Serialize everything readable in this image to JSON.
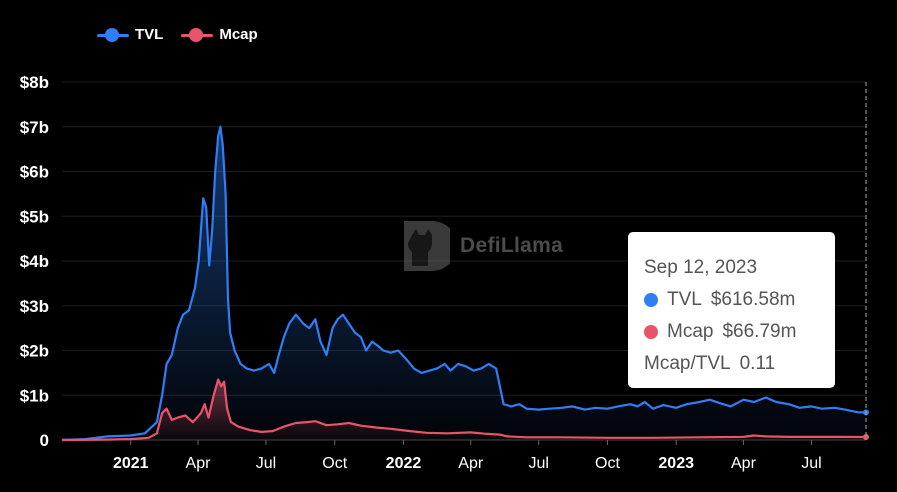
{
  "legend": {
    "tvl_label": "TVL",
    "mcap_label": "Mcap"
  },
  "watermark": "DefiLlama",
  "tooltip": {
    "date": "Sep 12, 2023",
    "tvl_label": "TVL",
    "tvl_value": "$616.58m",
    "mcap_label": "Mcap",
    "mcap_value": "$66.79m",
    "ratio_label": "Mcap/TVL",
    "ratio_value": "0.11"
  },
  "colors": {
    "tvl": "#2f7ef5",
    "mcap": "#e8556b",
    "background": "#000000",
    "grid": "#1e1e1e"
  },
  "chart_data": {
    "type": "area",
    "title": "",
    "xlabel": "",
    "ylabel": "",
    "ylim": [
      0,
      8
    ],
    "y_unit": "billions USD",
    "grid": true,
    "legend_position": "top-left",
    "y_ticks": [
      {
        "v": 0,
        "label": "0"
      },
      {
        "v": 1,
        "label": "$1b"
      },
      {
        "v": 2,
        "label": "$2b"
      },
      {
        "v": 3,
        "label": "$3b"
      },
      {
        "v": 4,
        "label": "$4b"
      },
      {
        "v": 5,
        "label": "$5b"
      },
      {
        "v": 6,
        "label": "$6b"
      },
      {
        "v": 7,
        "label": "$7b"
      },
      {
        "v": 8,
        "label": "$8b"
      }
    ],
    "x_ticks": [
      {
        "date": "2021-01-01",
        "label": "2021",
        "bold": true
      },
      {
        "date": "2021-04-01",
        "label": "Apr",
        "bold": false
      },
      {
        "date": "2021-07-01",
        "label": "Jul",
        "bold": false
      },
      {
        "date": "2021-10-01",
        "label": "Oct",
        "bold": false
      },
      {
        "date": "2022-01-01",
        "label": "2022",
        "bold": true
      },
      {
        "date": "2022-04-01",
        "label": "Apr",
        "bold": false
      },
      {
        "date": "2022-07-01",
        "label": "Jul",
        "bold": false
      },
      {
        "date": "2022-10-01",
        "label": "Oct",
        "bold": false
      },
      {
        "date": "2023-01-01",
        "label": "2023",
        "bold": true
      },
      {
        "date": "2023-04-01",
        "label": "Apr",
        "bold": false
      },
      {
        "date": "2023-07-01",
        "label": "Jul",
        "bold": false
      }
    ],
    "x_range": [
      "2020-10-01",
      "2023-09-12"
    ],
    "highlight_date": "2023-09-12",
    "series": [
      {
        "name": "TVL",
        "values": [
          [
            "2020-10-01",
            0.0
          ],
          [
            "2020-11-01",
            0.02
          ],
          [
            "2020-12-01",
            0.08
          ],
          [
            "2021-01-01",
            0.1
          ],
          [
            "2021-01-20",
            0.15
          ],
          [
            "2021-02-05",
            0.4
          ],
          [
            "2021-02-12",
            1.0
          ],
          [
            "2021-02-18",
            1.7
          ],
          [
            "2021-02-25",
            1.9
          ],
          [
            "2021-03-05",
            2.5
          ],
          [
            "2021-03-12",
            2.8
          ],
          [
            "2021-03-20",
            2.9
          ],
          [
            "2021-03-28",
            3.4
          ],
          [
            "2021-04-02",
            4.0
          ],
          [
            "2021-04-08",
            5.4
          ],
          [
            "2021-04-12",
            5.2
          ],
          [
            "2021-04-16",
            3.9
          ],
          [
            "2021-04-20",
            4.7
          ],
          [
            "2021-04-24",
            6.0
          ],
          [
            "2021-04-28",
            6.8
          ],
          [
            "2021-05-01",
            7.0
          ],
          [
            "2021-05-04",
            6.6
          ],
          [
            "2021-05-08",
            5.5
          ],
          [
            "2021-05-11",
            3.2
          ],
          [
            "2021-05-14",
            2.4
          ],
          [
            "2021-05-20",
            2.0
          ],
          [
            "2021-05-28",
            1.7
          ],
          [
            "2021-06-05",
            1.6
          ],
          [
            "2021-06-15",
            1.55
          ],
          [
            "2021-06-25",
            1.6
          ],
          [
            "2021-07-05",
            1.7
          ],
          [
            "2021-07-12",
            1.5
          ],
          [
            "2021-07-18",
            1.9
          ],
          [
            "2021-07-25",
            2.3
          ],
          [
            "2021-08-01",
            2.6
          ],
          [
            "2021-08-10",
            2.8
          ],
          [
            "2021-08-20",
            2.6
          ],
          [
            "2021-08-28",
            2.5
          ],
          [
            "2021-09-05",
            2.7
          ],
          [
            "2021-09-12",
            2.2
          ],
          [
            "2021-09-20",
            1.9
          ],
          [
            "2021-09-28",
            2.5
          ],
          [
            "2021-10-05",
            2.7
          ],
          [
            "2021-10-12",
            2.8
          ],
          [
            "2021-10-20",
            2.6
          ],
          [
            "2021-10-28",
            2.4
          ],
          [
            "2021-11-05",
            2.3
          ],
          [
            "2021-11-12",
            2.0
          ],
          [
            "2021-11-20",
            2.2
          ],
          [
            "2021-11-28",
            2.1
          ],
          [
            "2021-12-05",
            2.0
          ],
          [
            "2021-12-15",
            1.95
          ],
          [
            "2021-12-25",
            2.0
          ],
          [
            "2022-01-05",
            1.8
          ],
          [
            "2022-01-15",
            1.6
          ],
          [
            "2022-01-25",
            1.5
          ],
          [
            "2022-02-05",
            1.55
          ],
          [
            "2022-02-15",
            1.6
          ],
          [
            "2022-02-25",
            1.7
          ],
          [
            "2022-03-05",
            1.55
          ],
          [
            "2022-03-15",
            1.7
          ],
          [
            "2022-03-25",
            1.65
          ],
          [
            "2022-04-05",
            1.55
          ],
          [
            "2022-04-15",
            1.6
          ],
          [
            "2022-04-25",
            1.7
          ],
          [
            "2022-05-05",
            1.6
          ],
          [
            "2022-05-10",
            1.2
          ],
          [
            "2022-05-15",
            0.8
          ],
          [
            "2022-05-25",
            0.75
          ],
          [
            "2022-06-05",
            0.8
          ],
          [
            "2022-06-15",
            0.7
          ],
          [
            "2022-07-01",
            0.68
          ],
          [
            "2022-07-15",
            0.7
          ],
          [
            "2022-08-01",
            0.72
          ],
          [
            "2022-08-15",
            0.75
          ],
          [
            "2022-09-01",
            0.68
          ],
          [
            "2022-09-15",
            0.72
          ],
          [
            "2022-10-01",
            0.7
          ],
          [
            "2022-10-15",
            0.75
          ],
          [
            "2022-11-01",
            0.8
          ],
          [
            "2022-11-10",
            0.75
          ],
          [
            "2022-11-20",
            0.85
          ],
          [
            "2022-12-01",
            0.7
          ],
          [
            "2022-12-15",
            0.78
          ],
          [
            "2023-01-01",
            0.72
          ],
          [
            "2023-01-15",
            0.8
          ],
          [
            "2023-02-01",
            0.85
          ],
          [
            "2023-02-15",
            0.9
          ],
          [
            "2023-03-01",
            0.82
          ],
          [
            "2023-03-15",
            0.75
          ],
          [
            "2023-04-01",
            0.9
          ],
          [
            "2023-04-15",
            0.85
          ],
          [
            "2023-05-01",
            0.95
          ],
          [
            "2023-05-15",
            0.85
          ],
          [
            "2023-06-01",
            0.8
          ],
          [
            "2023-06-15",
            0.72
          ],
          [
            "2023-07-01",
            0.75
          ],
          [
            "2023-07-15",
            0.7
          ],
          [
            "2023-08-01",
            0.72
          ],
          [
            "2023-08-15",
            0.68
          ],
          [
            "2023-09-01",
            0.62
          ],
          [
            "2023-09-12",
            0.6166
          ]
        ]
      },
      {
        "name": "Mcap",
        "values": [
          [
            "2020-10-01",
            0.0
          ],
          [
            "2020-12-01",
            0.01
          ],
          [
            "2021-01-01",
            0.02
          ],
          [
            "2021-01-25",
            0.05
          ],
          [
            "2021-02-05",
            0.15
          ],
          [
            "2021-02-12",
            0.6
          ],
          [
            "2021-02-18",
            0.7
          ],
          [
            "2021-02-25",
            0.45
          ],
          [
            "2021-03-05",
            0.5
          ],
          [
            "2021-03-15",
            0.55
          ],
          [
            "2021-03-25",
            0.4
          ],
          [
            "2021-04-05",
            0.6
          ],
          [
            "2021-04-10",
            0.8
          ],
          [
            "2021-04-15",
            0.5
          ],
          [
            "2021-04-22",
            1.0
          ],
          [
            "2021-04-28",
            1.35
          ],
          [
            "2021-05-02",
            1.2
          ],
          [
            "2021-05-06",
            1.3
          ],
          [
            "2021-05-10",
            0.7
          ],
          [
            "2021-05-15",
            0.4
          ],
          [
            "2021-05-25",
            0.3
          ],
          [
            "2021-06-10",
            0.22
          ],
          [
            "2021-06-25",
            0.18
          ],
          [
            "2021-07-10",
            0.2
          ],
          [
            "2021-07-25",
            0.3
          ],
          [
            "2021-08-10",
            0.38
          ],
          [
            "2021-08-25",
            0.4
          ],
          [
            "2021-09-05",
            0.42
          ],
          [
            "2021-09-20",
            0.33
          ],
          [
            "2021-10-05",
            0.35
          ],
          [
            "2021-10-20",
            0.38
          ],
          [
            "2021-11-05",
            0.32
          ],
          [
            "2021-11-25",
            0.28
          ],
          [
            "2021-12-15",
            0.25
          ],
          [
            "2022-01-10",
            0.2
          ],
          [
            "2022-02-01",
            0.16
          ],
          [
            "2022-03-01",
            0.15
          ],
          [
            "2022-04-01",
            0.17
          ],
          [
            "2022-04-20",
            0.14
          ],
          [
            "2022-05-10",
            0.12
          ],
          [
            "2022-05-20",
            0.08
          ],
          [
            "2022-06-15",
            0.06
          ],
          [
            "2022-08-01",
            0.06
          ],
          [
            "2022-10-01",
            0.05
          ],
          [
            "2022-12-01",
            0.05
          ],
          [
            "2023-02-01",
            0.06
          ],
          [
            "2023-04-01",
            0.07
          ],
          [
            "2023-04-15",
            0.1
          ],
          [
            "2023-05-01",
            0.08
          ],
          [
            "2023-06-01",
            0.07
          ],
          [
            "2023-08-01",
            0.07
          ],
          [
            "2023-09-12",
            0.0668
          ]
        ]
      }
    ]
  }
}
